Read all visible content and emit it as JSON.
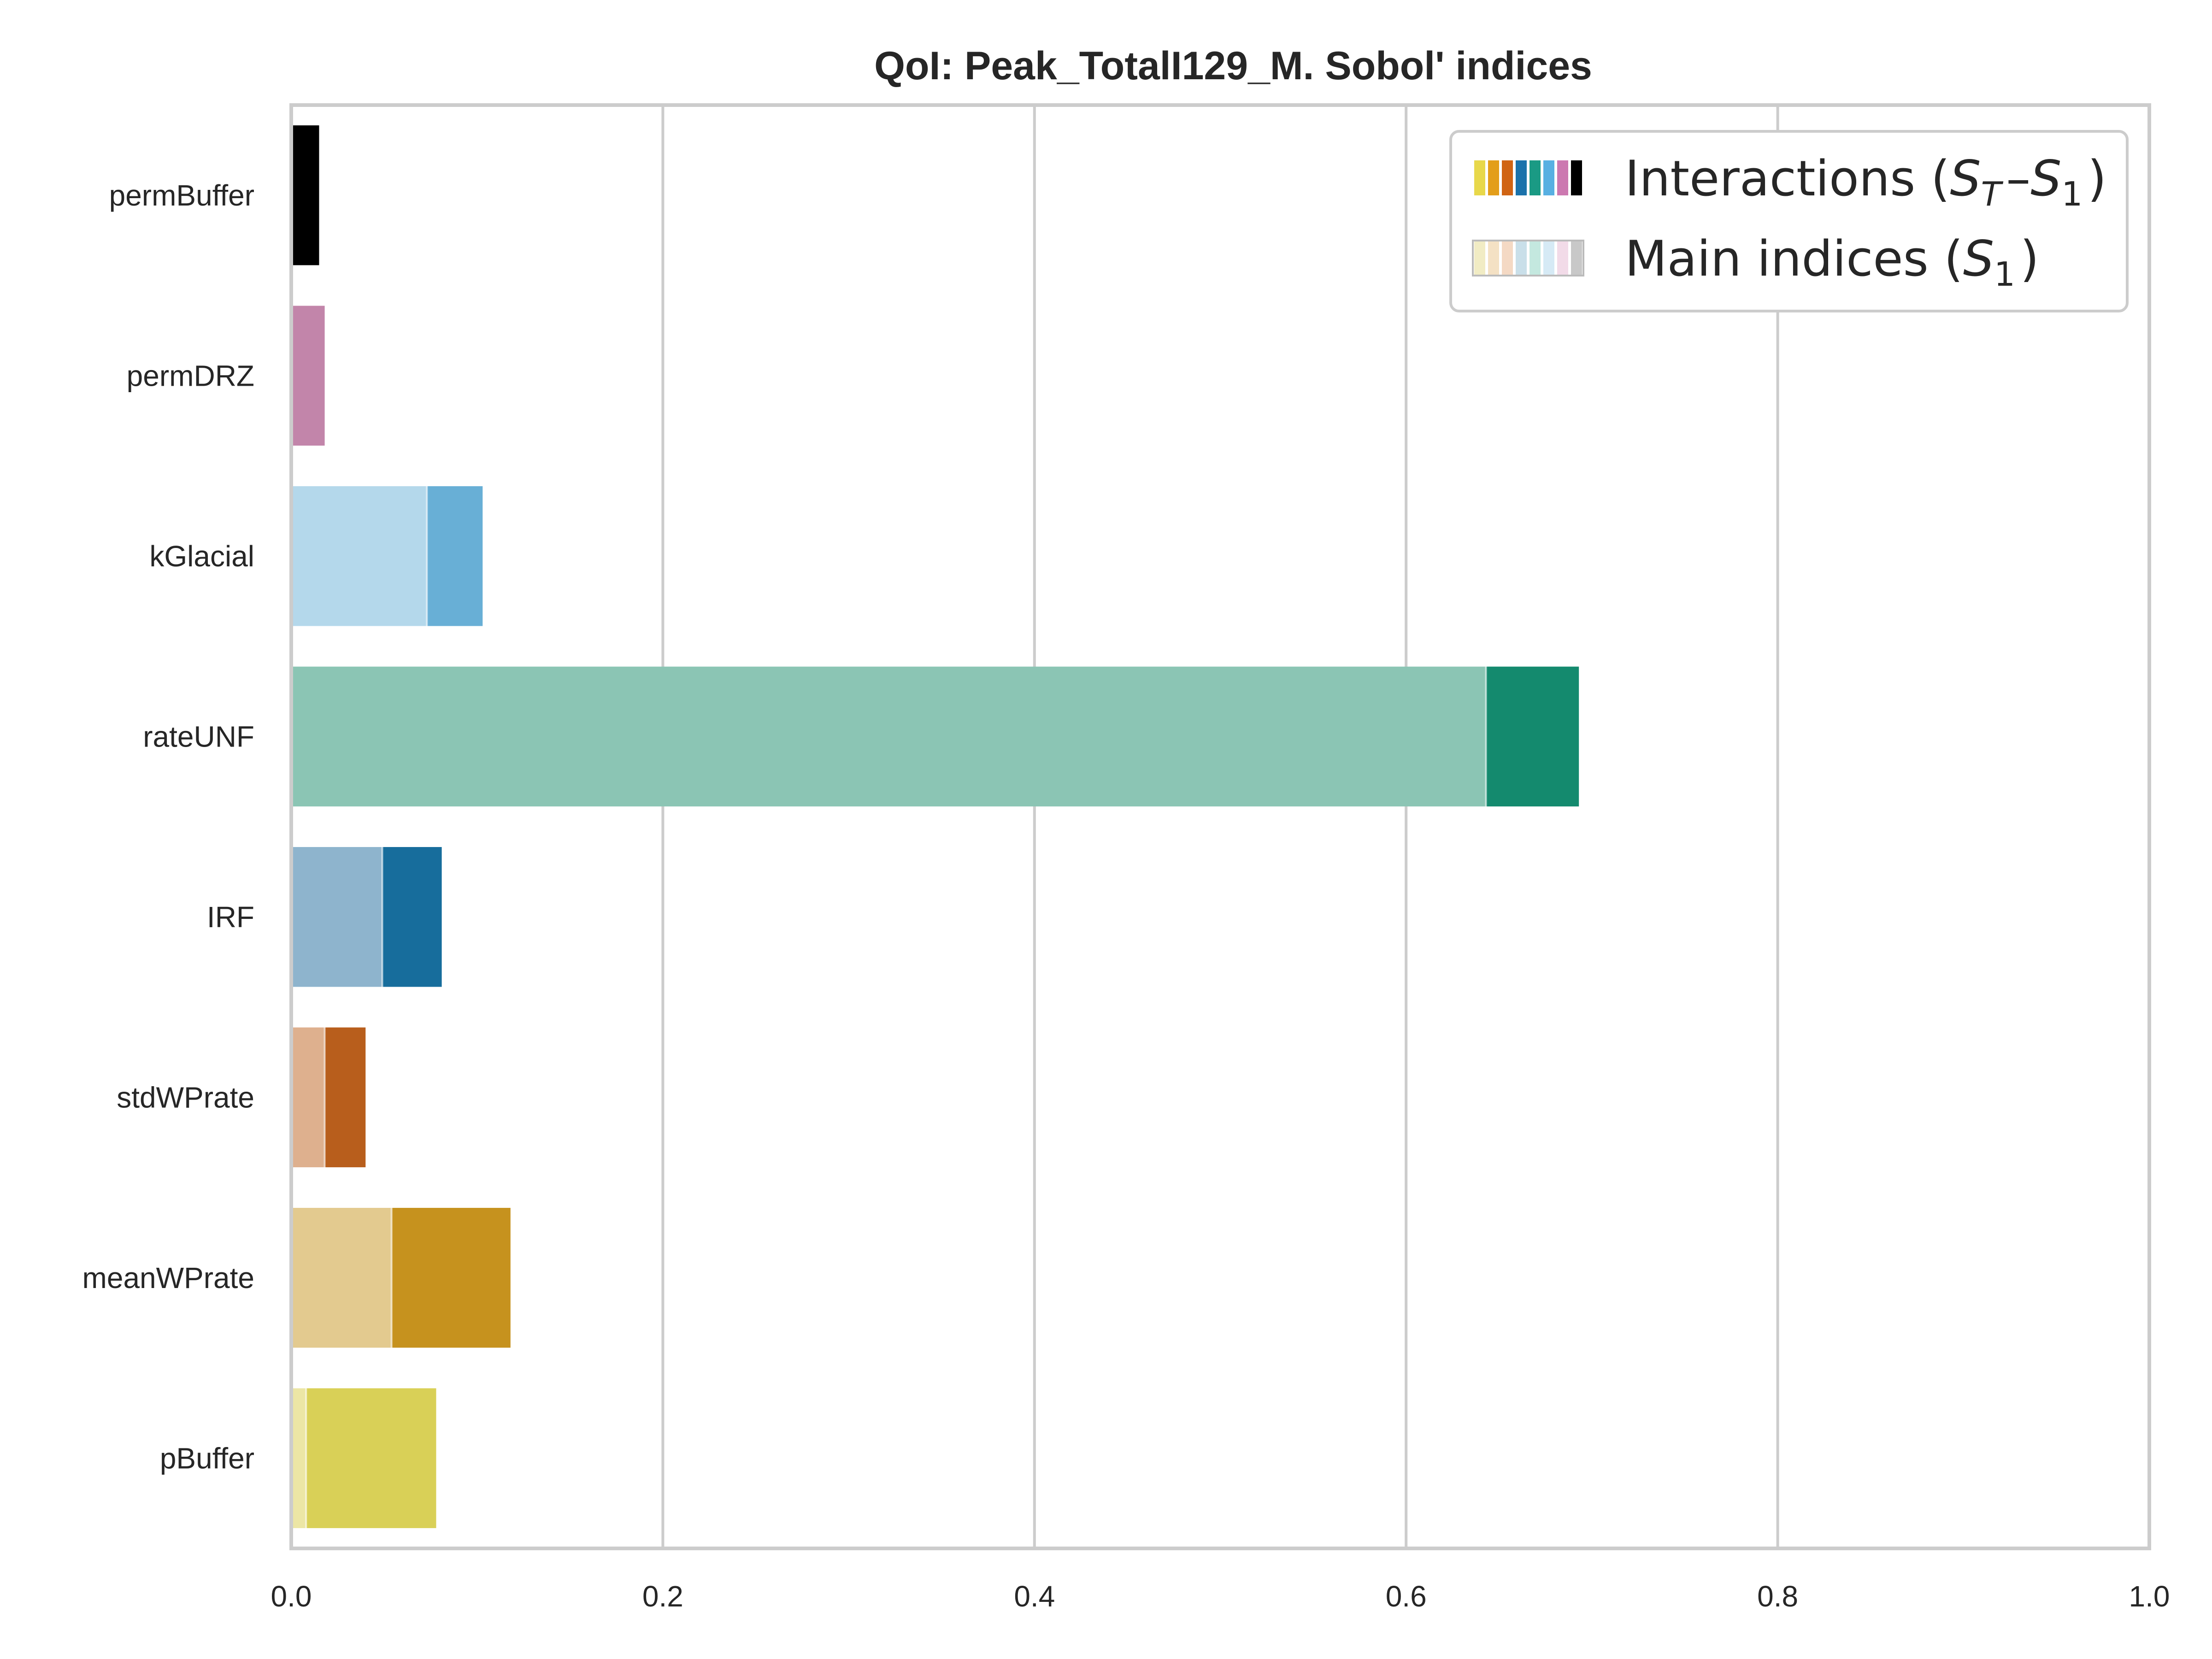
{
  "chart_data": {
    "type": "bar",
    "orientation": "horizontal",
    "stacked": true,
    "title": "QoI: Peak_TotalI129_M. Sobol' indices",
    "xlabel": "",
    "ylabel": "",
    "xlim": [
      0,
      1
    ],
    "x_ticks": [
      "0.0",
      "0.2",
      "0.4",
      "0.6",
      "0.8",
      "1.0"
    ],
    "grid": "vertical",
    "legend_position": "top-right",
    "categories": [
      "permBuffer",
      "permDRZ",
      "kGlacial",
      "rateUNF",
      "IRF",
      "stdWPrate",
      "meanWPrate",
      "pBuffer"
    ],
    "series": [
      {
        "name": "Main indices (S1)",
        "values": [
          0.0,
          0.0,
          0.073,
          0.643,
          0.049,
          0.018,
          0.054,
          0.008
        ],
        "colors": [
          "#9a9a9a",
          "#e0b6cf",
          "#b4d8eb",
          "#8bc5b4",
          "#8eb4cd",
          "#deb08e",
          "#e3ca8f",
          "#ece6a5"
        ]
      },
      {
        "name": "Interactions (ST–S1)",
        "values": [
          0.015,
          0.018,
          0.03,
          0.05,
          0.032,
          0.022,
          0.064,
          0.07
        ],
        "colors": [
          "#000000",
          "#c285aa",
          "#68afd6",
          "#148a6e",
          "#176d9c",
          "#b85e1c",
          "#c6921e",
          "#d9d057"
        ]
      }
    ],
    "legend": [
      {
        "prefix": "Interactions (",
        "terms": [
          {
            "base": "S",
            "sub": "T"
          },
          {
            "base": "S",
            "sub": "1"
          }
        ],
        "separator": "–",
        "suffix": ")",
        "swatch_colors": [
          "#e8d84a",
          "#e39e1a",
          "#d06414",
          "#1b72ab",
          "#1a9a84",
          "#58b0e2",
          "#cc78b0",
          "#000000"
        ]
      },
      {
        "prefix": "Main indices (",
        "terms": [
          {
            "base": "S",
            "sub": "1"
          }
        ],
        "separator": "",
        "suffix": ")",
        "swatch_colors": [
          "#f1ecc4",
          "#f4e1c4",
          "#f4d9c4",
          "#c9dfe9",
          "#c4e8df",
          "#d6eaf5",
          "#f2dbe8",
          "#c8c8c8"
        ]
      }
    ],
    "colors": {
      "axes_edge": "#cccccc",
      "grid": "#cccccc",
      "text": "#262626",
      "background": "#ffffff"
    }
  }
}
